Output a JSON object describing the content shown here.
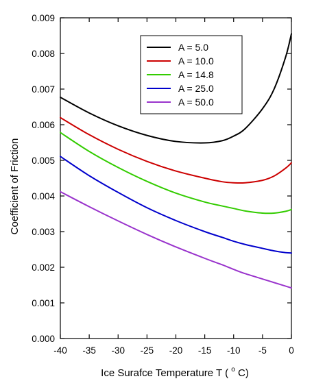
{
  "chart_data": {
    "type": "line",
    "title": "",
    "xlabel": "Ice Surafce Temperature  T  (°C)",
    "xlabel_parts": {
      "main": "Ice Surafce Temperature  T  (",
      "sup": "o",
      "unit": "C)"
    },
    "ylabel": "Coefficient of Friction",
    "xlim": [
      -40,
      0
    ],
    "ylim": [
      0,
      0.009
    ],
    "xticks": [
      -40,
      -35,
      -30,
      -25,
      -20,
      -15,
      -10,
      -5,
      0
    ],
    "xtick_labels": [
      "-40",
      "-35",
      "-30",
      "-25",
      "-20",
      "-15",
      "-10",
      "-5",
      "0"
    ],
    "yticks": [
      0,
      0.001,
      0.002,
      0.003,
      0.004,
      0.005,
      0.006,
      0.007,
      0.008,
      0.009
    ],
    "ytick_labels": [
      "0.000",
      "0.001",
      "0.002",
      "0.003",
      "0.004",
      "0.005",
      "0.006",
      "0.007",
      "0.008",
      "0.009"
    ],
    "grid": false,
    "legend_position": "top-center",
    "x": [
      -40,
      -35,
      -30,
      -25,
      -20,
      -15,
      -12,
      -10,
      -8,
      -5,
      -3,
      -1,
      0
    ],
    "series": [
      {
        "name": "A = 5.0",
        "color": "#000000",
        "values": [
          0.00677,
          0.00633,
          0.00597,
          0.0057,
          0.00553,
          0.00549,
          0.00555,
          0.00568,
          0.00589,
          0.00645,
          0.007,
          0.0079,
          0.00855
        ]
      },
      {
        "name": "A = 10.0",
        "color": "#cc0000",
        "values": [
          0.0062,
          0.00572,
          0.00531,
          0.00497,
          0.0047,
          0.0045,
          0.0044,
          0.00437,
          0.00437,
          0.00444,
          0.00456,
          0.00478,
          0.00493
        ]
      },
      {
        "name": "A = 14.8",
        "color": "#33cc00",
        "values": [
          0.00578,
          0.00525,
          0.0048,
          0.00441,
          0.00408,
          0.00383,
          0.00372,
          0.00365,
          0.00358,
          0.00352,
          0.00352,
          0.00357,
          0.00362
        ]
      },
      {
        "name": "A = 25.0",
        "color": "#0000cc",
        "values": [
          0.00511,
          0.00457,
          0.0041,
          0.00367,
          0.00331,
          0.003,
          0.00284,
          0.00273,
          0.00264,
          0.00253,
          0.00246,
          0.00241,
          0.0024
        ]
      },
      {
        "name": "A = 50.0",
        "color": "#9933cc",
        "values": [
          0.00412,
          0.0037,
          0.0033,
          0.00292,
          0.00257,
          0.00225,
          0.00207,
          0.00194,
          0.00182,
          0.00167,
          0.00157,
          0.00147,
          0.00142
        ]
      }
    ]
  }
}
